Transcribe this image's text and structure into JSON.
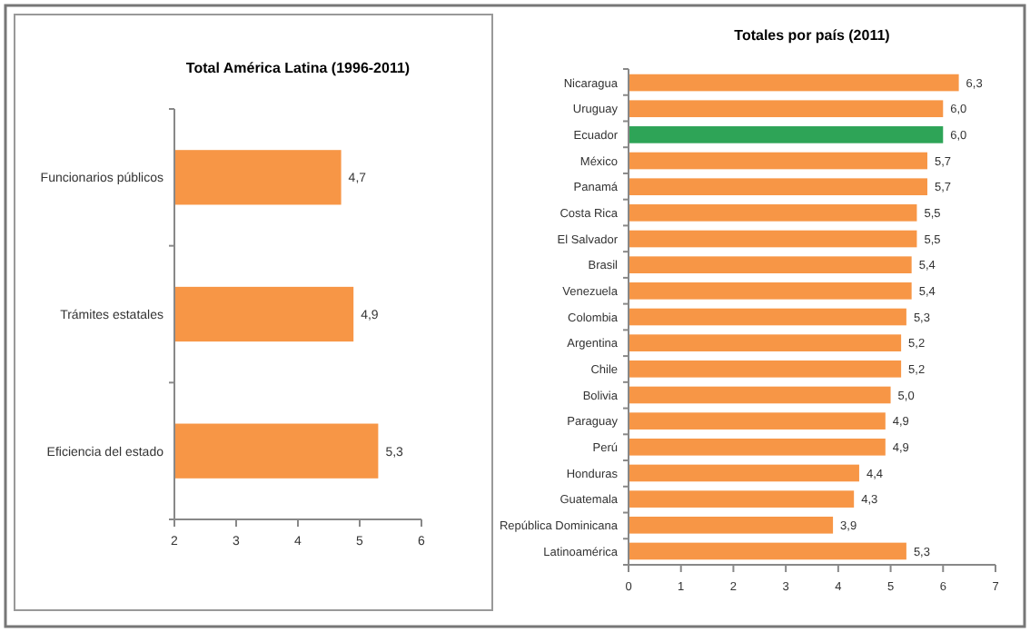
{
  "chart_data": [
    {
      "type": "bar",
      "orientation": "horizontal",
      "title": "Total América Latina (1996-2011)",
      "categories": [
        "Funcionarios públicos",
        "Trámites estatales",
        "Eficiencia del estado"
      ],
      "values": [
        4.7,
        4.9,
        5.3
      ],
      "value_labels": [
        "4,7",
        "4,9",
        "5,3"
      ],
      "color": "#f79646",
      "xlim": [
        2,
        6
      ],
      "xticks": [
        2,
        3,
        4,
        5,
        6
      ],
      "grid": false,
      "legend": false
    },
    {
      "type": "bar",
      "orientation": "horizontal",
      "title": "Totales por país (2011)",
      "categories": [
        "Nicaragua",
        "Uruguay",
        "Ecuador",
        "México",
        "Panamá",
        "Costa Rica",
        "El Salvador",
        "Brasil",
        "Venezuela",
        "Colombia",
        "Argentina",
        "Chile",
        "Bolivia",
        "Paraguay",
        "Perú",
        "Honduras",
        "Guatemala",
        "República Dominicana",
        "Latinoamérica"
      ],
      "values": [
        6.3,
        6.0,
        6.0,
        5.7,
        5.7,
        5.5,
        5.5,
        5.4,
        5.4,
        5.3,
        5.2,
        5.2,
        5.0,
        4.9,
        4.9,
        4.4,
        4.3,
        3.9,
        5.3
      ],
      "value_labels": [
        "6,3",
        "6,0",
        "6,0",
        "5,7",
        "5,7",
        "5,5",
        "5,5",
        "5,4",
        "5,4",
        "5,3",
        "5,2",
        "5,2",
        "5,0",
        "4,9",
        "4,9",
        "4,4",
        "4,3",
        "3,9",
        "5,3"
      ],
      "colors": [
        "#f79646",
        "#f79646",
        "#2ea457",
        "#f79646",
        "#f79646",
        "#f79646",
        "#f79646",
        "#f79646",
        "#f79646",
        "#f79646",
        "#f79646",
        "#f79646",
        "#f79646",
        "#f79646",
        "#f79646",
        "#f79646",
        "#f79646",
        "#f79646",
        "#f79646"
      ],
      "xlim": [
        0,
        7
      ],
      "xticks": [
        0,
        1,
        2,
        3,
        4,
        5,
        6,
        7
      ],
      "grid": false,
      "legend": false
    }
  ]
}
